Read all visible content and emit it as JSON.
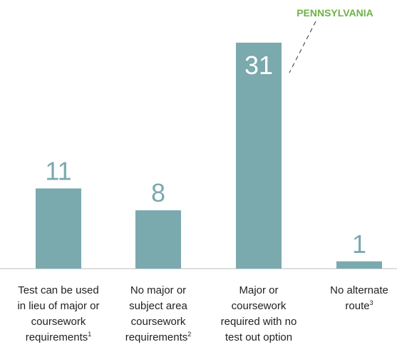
{
  "chart_data": {
    "type": "bar",
    "annotation": "PENNSYLVANIA",
    "categories": [
      "Test can be used in lieu of major or coursework requirements",
      "No major or subject area coursework requirements",
      "Major or coursework required with no test out option",
      "No alternate route"
    ],
    "footnotes": [
      "1",
      "2",
      null,
      "3"
    ],
    "values": [
      11,
      8,
      31,
      1
    ],
    "color": "#7aa9ae",
    "annotation_color": "#6fb04a"
  }
}
